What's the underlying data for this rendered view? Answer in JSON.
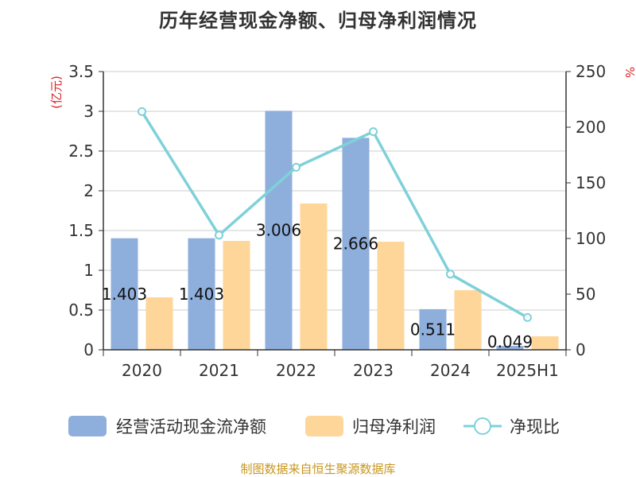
{
  "title": "历年经营现金净额、归母净利润情况",
  "source": "制图数据来自恒生聚源数据库",
  "colors": {
    "cash": "#8eaedc",
    "profit": "#fed69a",
    "ratio": "#7fd1d9",
    "unit": "#dd2222",
    "axis": "#333333",
    "grid": "#cccccc"
  },
  "chart_data": {
    "type": "bar",
    "categories": [
      "2020",
      "2021",
      "2022",
      "2023",
      "2024",
      "2025H1"
    ],
    "left_unit": "(亿元)",
    "right_unit": "%",
    "ylim_left": [
      0,
      3.5
    ],
    "ylim_right": [
      0,
      250
    ],
    "left_ticks": [
      "0",
      "0.5",
      "1",
      "1.5",
      "2",
      "2.5",
      "3",
      "3.5"
    ],
    "right_ticks": [
      "0",
      "50",
      "100",
      "150",
      "200",
      "250"
    ],
    "grid": true,
    "legend_position": "bottom",
    "series": [
      {
        "name": "经营活动现金流净额",
        "type": "bar",
        "axis": "left",
        "values": [
          1.403,
          1.403,
          3.006,
          2.666,
          0.511,
          0.049
        ],
        "labels": [
          "1.403",
          "1.403",
          "3.006",
          "2.666",
          "0.511",
          "0.049"
        ]
      },
      {
        "name": "归母净利润",
        "type": "bar",
        "axis": "left",
        "values": [
          0.66,
          1.37,
          1.84,
          1.36,
          0.75,
          0.17
        ]
      },
      {
        "name": "净现比",
        "type": "line",
        "axis": "right",
        "values": [
          214,
          103,
          164,
          196,
          68,
          29
        ]
      }
    ]
  }
}
